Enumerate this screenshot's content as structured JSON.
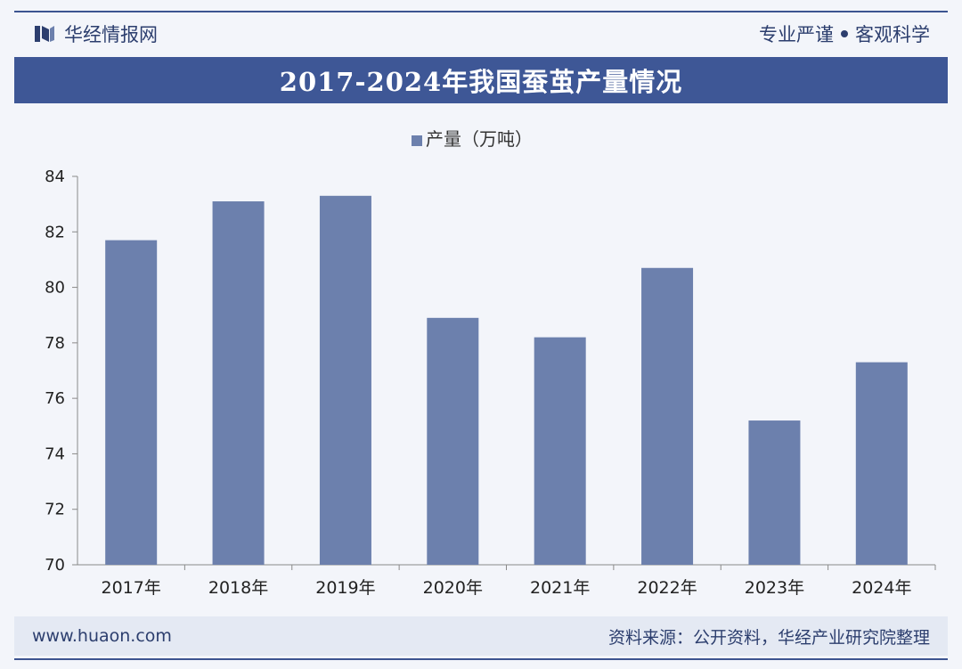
{
  "header": {
    "brand": "华经情报网",
    "slogan_left": "专业严谨",
    "slogan_right": "客观科学"
  },
  "title": "2017-2024年我国蚕茧产量情况",
  "footer": {
    "website": "www.huaon.com",
    "source": "资料来源：公开资料，华经产业研究院整理"
  },
  "colors": {
    "accent": "#3e5796",
    "bar": "#6c80ad"
  },
  "chart_data": {
    "type": "bar",
    "title": "2017-2024年我国蚕茧产量情况",
    "categories": [
      "2017年",
      "2018年",
      "2019年",
      "2020年",
      "2021年",
      "2022年",
      "2023年",
      "2024年"
    ],
    "series": [
      {
        "name": "产量（万吨）",
        "values": [
          81.7,
          83.1,
          83.3,
          78.9,
          78.2,
          80.7,
          75.2,
          77.3
        ]
      }
    ],
    "ylim": [
      70,
      84
    ],
    "yticks": [
      70,
      72,
      74,
      76,
      78,
      80,
      82,
      84
    ],
    "xlabel": "",
    "ylabel": "",
    "grid": false,
    "legend": "top-center"
  }
}
